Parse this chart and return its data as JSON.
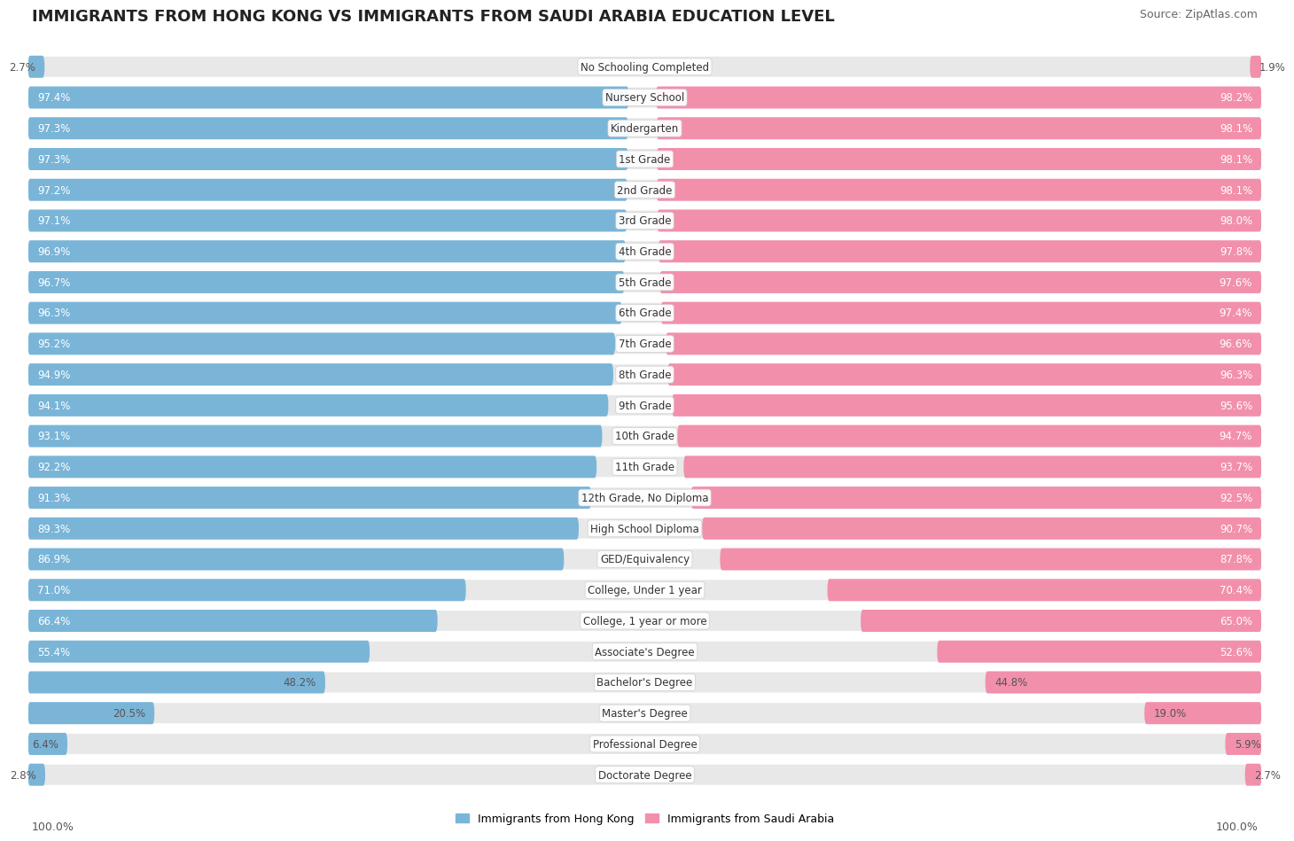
{
  "title": "IMMIGRANTS FROM HONG KONG VS IMMIGRANTS FROM SAUDI ARABIA EDUCATION LEVEL",
  "source": "Source: ZipAtlas.com",
  "categories": [
    "No Schooling Completed",
    "Nursery School",
    "Kindergarten",
    "1st Grade",
    "2nd Grade",
    "3rd Grade",
    "4th Grade",
    "5th Grade",
    "6th Grade",
    "7th Grade",
    "8th Grade",
    "9th Grade",
    "10th Grade",
    "11th Grade",
    "12th Grade, No Diploma",
    "High School Diploma",
    "GED/Equivalency",
    "College, Under 1 year",
    "College, 1 year or more",
    "Associate's Degree",
    "Bachelor's Degree",
    "Master's Degree",
    "Professional Degree",
    "Doctorate Degree"
  ],
  "hong_kong": [
    2.7,
    97.4,
    97.3,
    97.3,
    97.2,
    97.1,
    96.9,
    96.7,
    96.3,
    95.2,
    94.9,
    94.1,
    93.1,
    92.2,
    91.3,
    89.3,
    86.9,
    71.0,
    66.4,
    55.4,
    48.2,
    20.5,
    6.4,
    2.8
  ],
  "saudi_arabia": [
    1.9,
    98.2,
    98.1,
    98.1,
    98.1,
    98.0,
    97.8,
    97.6,
    97.4,
    96.6,
    96.3,
    95.6,
    94.7,
    93.7,
    92.5,
    90.7,
    87.8,
    70.4,
    65.0,
    52.6,
    44.8,
    19.0,
    5.9,
    2.7
  ],
  "hk_color": "#7ab5d8",
  "sa_color": "#f290ab",
  "row_bg_color": "#e8e8e8",
  "title_fontsize": 13,
  "source_fontsize": 9,
  "label_fontsize": 8.5,
  "value_fontsize": 8.5
}
